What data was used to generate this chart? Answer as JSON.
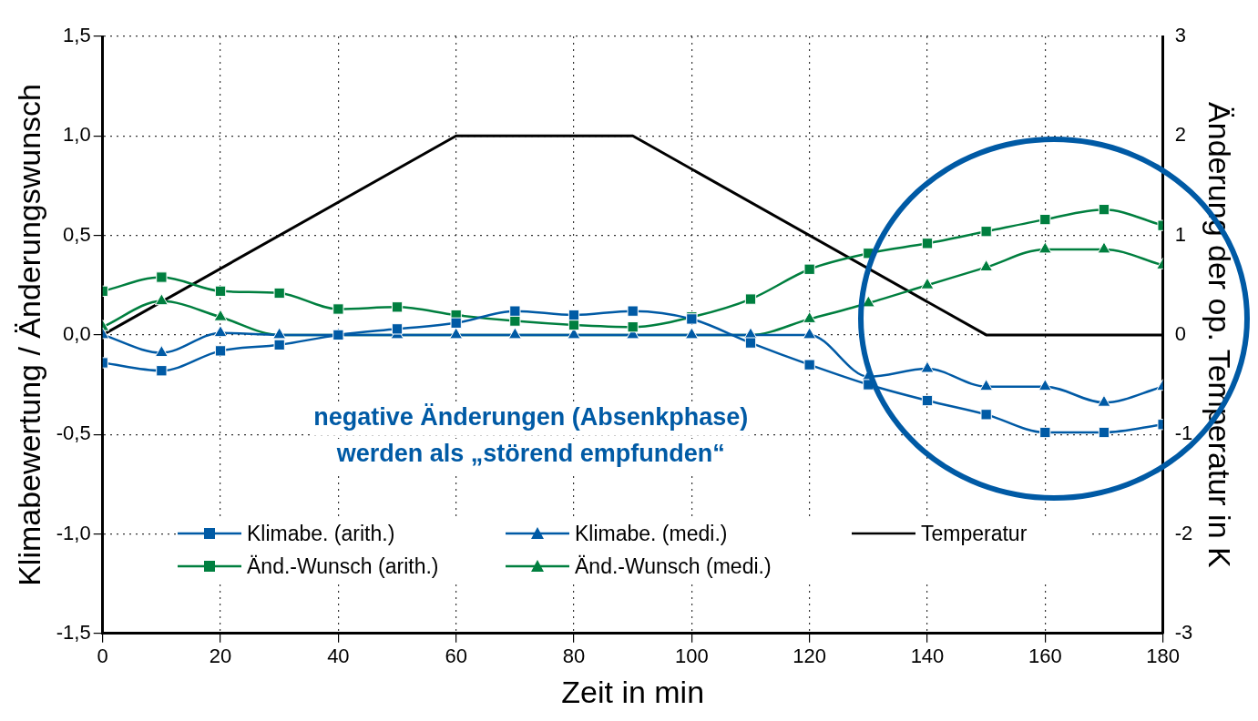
{
  "chart_data": {
    "type": "line",
    "xlabel": "Zeit in min",
    "ylabel": "Klimabewertung / Änderungswunsch",
    "y2label": "Änderung der op. Temperatur in K",
    "annotations": [
      "negative Änderungen (Absenkphase)",
      "werden als „störend empfunden“"
    ],
    "x": [
      0,
      10,
      20,
      30,
      40,
      50,
      60,
      70,
      80,
      90,
      100,
      110,
      120,
      130,
      140,
      150,
      160,
      170,
      180
    ],
    "series": [
      {
        "name": "Klimabe. (arith.)",
        "color": "#005aa5",
        "marker": "square",
        "values": [
          -0.14,
          -0.18,
          -0.08,
          -0.05,
          0.0,
          0.03,
          0.06,
          0.12,
          0.1,
          0.12,
          0.08,
          -0.04,
          -0.15,
          -0.25,
          -0.33,
          -0.4,
          -0.49,
          -0.49,
          -0.45
        ]
      },
      {
        "name": "Änd.-Wunsch (arith.)",
        "color": "#007f3f",
        "marker": "square",
        "values": [
          0.22,
          0.29,
          0.22,
          0.21,
          0.13,
          0.14,
          0.1,
          0.07,
          0.05,
          0.04,
          0.09,
          0.18,
          0.33,
          0.41,
          0.46,
          0.52,
          0.58,
          0.63,
          0.55
        ]
      },
      {
        "name": "Klimabe. (medi.)",
        "color": "#005aa5",
        "marker": "triangle",
        "values": [
          0.0,
          -0.09,
          0.01,
          0.0,
          0.0,
          0.0,
          0.0,
          0.0,
          0.0,
          0.0,
          0.0,
          0.0,
          0.0,
          -0.21,
          -0.17,
          -0.26,
          -0.26,
          -0.34,
          -0.26
        ]
      },
      {
        "name": "Änd.-Wunsch (medi.)",
        "color": "#007f3f",
        "marker": "triangle",
        "values": [
          0.04,
          0.17,
          0.09,
          0.0,
          0.0,
          0.0,
          0.0,
          0.0,
          0.0,
          0.0,
          0.0,
          0.0,
          0.08,
          0.16,
          0.25,
          0.34,
          0.43,
          0.43,
          0.35
        ]
      },
      {
        "name": "Temperatur",
        "color": "#000000",
        "marker": "none",
        "axis": "y2",
        "x": [
          0,
          60,
          90,
          150,
          180
        ],
        "values": [
          0,
          2,
          2,
          0,
          0
        ]
      }
    ],
    "xlim": [
      0,
      180
    ],
    "xticks": [
      0,
      20,
      40,
      60,
      80,
      100,
      120,
      140,
      160,
      180
    ],
    "ylim": [
      -1.5,
      1.5
    ],
    "yticks": [
      {
        "value": -1.5,
        "label": "-1,5"
      },
      {
        "value": -1,
        "label": "-1,0"
      },
      {
        "value": -0.5,
        "label": "-0,5"
      },
      {
        "value": 0,
        "label": "0,0"
      },
      {
        "value": 0.5,
        "label": "0,5"
      },
      {
        "value": 1,
        "label": "1,0"
      },
      {
        "value": 1.5,
        "label": "1,5"
      }
    ],
    "y2lim": [
      -3,
      3
    ],
    "y2ticks": [
      -3,
      -2,
      -1,
      0,
      1,
      2,
      3
    ],
    "grid": true,
    "legend": "bottom",
    "line_style": "solid"
  }
}
